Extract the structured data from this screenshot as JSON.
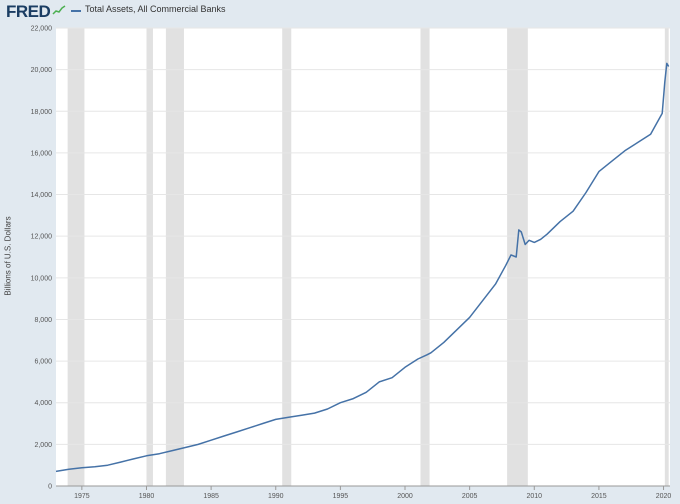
{
  "header": {
    "logo_text": "FRED",
    "logo_icon": "line-graph-icon",
    "series_name": "Total Assets, All Commercial Banks"
  },
  "chart_data": {
    "type": "line",
    "title": "",
    "xlabel": "",
    "ylabel": "Billions of U.S. Dollars",
    "xlim": [
      1973.0,
      2020.5
    ],
    "ylim": [
      0,
      22000
    ],
    "grid": true,
    "y_ticks": [
      0,
      2000,
      4000,
      6000,
      8000,
      10000,
      12000,
      14000,
      16000,
      18000,
      20000,
      22000
    ],
    "y_tick_labels": [
      "0",
      "2,000",
      "4,000",
      "6,000",
      "8,000",
      "10,000",
      "12,000",
      "14,000",
      "16,000",
      "18,000",
      "20,000",
      "22,000"
    ],
    "x_ticks": [
      1975,
      1980,
      1985,
      1990,
      1995,
      2000,
      2005,
      2010,
      2015,
      2020
    ],
    "x_tick_labels": [
      "1975",
      "1980",
      "1985",
      "1990",
      "1995",
      "2000",
      "2005",
      "2010",
      "2015",
      "2020"
    ],
    "recessions": [
      [
        1973.9,
        1975.2
      ],
      [
        1980.0,
        1980.5
      ],
      [
        1981.5,
        1982.9
      ],
      [
        1990.5,
        1991.2
      ],
      [
        2001.2,
        2001.9
      ],
      [
        2007.9,
        2009.5
      ],
      [
        2020.1,
        2020.4
      ]
    ],
    "series": [
      {
        "name": "Total Assets, All Commercial Banks",
        "color": "#4572a7",
        "x": [
          1973.0,
          1974.0,
          1975.0,
          1976.0,
          1977.0,
          1978.0,
          1979.0,
          1980.0,
          1981.0,
          1982.0,
          1983.0,
          1984.0,
          1985.0,
          1986.0,
          1987.0,
          1988.0,
          1989.0,
          1990.0,
          1991.0,
          1992.0,
          1993.0,
          1994.0,
          1995.0,
          1996.0,
          1997.0,
          1998.0,
          1999.0,
          2000.0,
          2001.0,
          2001.7,
          2002.0,
          2003.0,
          2004.0,
          2005.0,
          2006.0,
          2007.0,
          2007.8,
          2008.2,
          2008.6,
          2008.8,
          2009.0,
          2009.3,
          2009.6,
          2010.0,
          2010.5,
          2011.0,
          2012.0,
          2013.0,
          2014.0,
          2015.0,
          2016.0,
          2017.0,
          2018.0,
          2019.0,
          2019.9,
          2020.1,
          2020.25,
          2020.4
        ],
        "values": [
          700,
          800,
          880,
          920,
          1000,
          1150,
          1300,
          1450,
          1550,
          1700,
          1850,
          2000,
          2200,
          2400,
          2600,
          2800,
          3000,
          3200,
          3300,
          3400,
          3500,
          3700,
          4000,
          4200,
          4500,
          5000,
          5200,
          5700,
          6100,
          6300,
          6400,
          6900,
          7500,
          8100,
          8900,
          9700,
          10600,
          11100,
          11000,
          12300,
          12200,
          11600,
          11800,
          11700,
          11850,
          12100,
          12700,
          13200,
          14100,
          15100,
          15600,
          16100,
          16500,
          16900,
          17900,
          19400,
          20300,
          20150
        ]
      }
    ]
  }
}
